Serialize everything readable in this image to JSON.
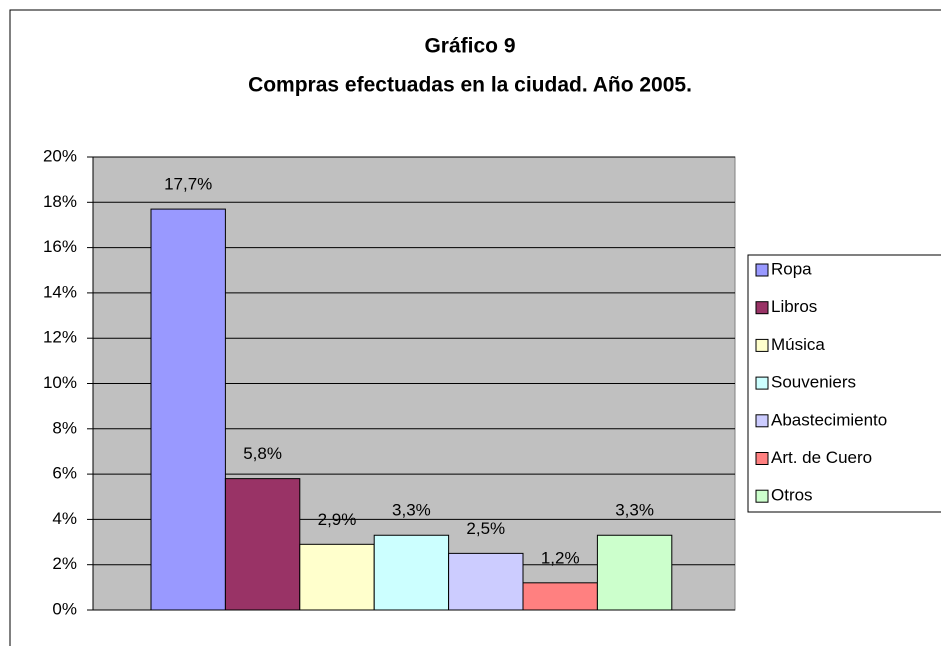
{
  "chart_data": {
    "type": "bar",
    "title": "Gráfico 9",
    "subtitle": "Compras efectuadas en la ciudad. Año 2005.",
    "series": [
      {
        "name": "Ropa",
        "color": "#9999ff",
        "values": [
          17.7
        ],
        "value_labels": [
          "17,7%"
        ]
      },
      {
        "name": "Libros",
        "color": "#993366",
        "values": [
          5.8
        ],
        "value_labels": [
          "5,8%"
        ]
      },
      {
        "name": "Música",
        "color": "#ffffcc",
        "values": [
          2.9
        ],
        "value_labels": [
          "2,9%"
        ]
      },
      {
        "name": "Souveniers",
        "color": "#ccffff",
        "values": [
          3.3
        ],
        "value_labels": [
          "3,3%"
        ]
      },
      {
        "name": "Abastecimiento",
        "color": "#ccccff",
        "values": [
          2.5
        ],
        "value_labels": [
          "2,5%"
        ]
      },
      {
        "name": "Art. de Cuero",
        "color": "#ff8080",
        "values": [
          1.2
        ],
        "value_labels": [
          "1,2%"
        ]
      },
      {
        "name": "Otros",
        "color": "#ccffcc",
        "values": [
          3.3
        ],
        "value_labels": [
          "3,3%"
        ]
      }
    ],
    "ylim": [
      0,
      20
    ],
    "yticks": [
      {
        "value": 0,
        "label": "0%"
      },
      {
        "value": 2,
        "label": "2%"
      },
      {
        "value": 4,
        "label": "4%"
      },
      {
        "value": 6,
        "label": "6%"
      },
      {
        "value": 8,
        "label": "8%"
      },
      {
        "value": 10,
        "label": "10%"
      },
      {
        "value": 12,
        "label": "12%"
      },
      {
        "value": 14,
        "label": "14%"
      },
      {
        "value": 16,
        "label": "16%"
      },
      {
        "value": 18,
        "label": "18%"
      },
      {
        "value": 20,
        "label": "20%"
      }
    ],
    "grid": true,
    "legend": "right"
  }
}
